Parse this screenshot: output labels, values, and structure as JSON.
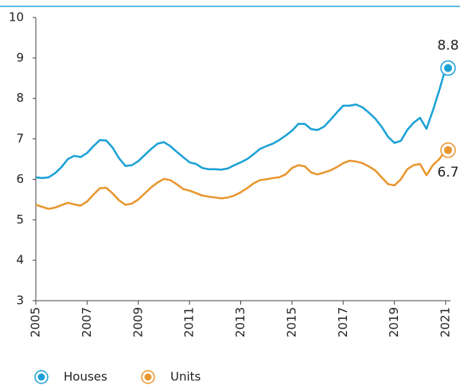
{
  "chart_data": {
    "type": "line",
    "x": [
      2005,
      2005.25,
      2005.5,
      2005.75,
      2006,
      2006.25,
      2006.5,
      2006.75,
      2007,
      2007.25,
      2007.5,
      2007.75,
      2008,
      2008.25,
      2008.5,
      2008.75,
      2009,
      2009.25,
      2009.5,
      2009.75,
      2010,
      2010.25,
      2010.5,
      2010.75,
      2011,
      2011.25,
      2011.5,
      2011.75,
      2012,
      2012.25,
      2012.5,
      2012.75,
      2013,
      2013.25,
      2013.5,
      2013.75,
      2014,
      2014.25,
      2014.5,
      2014.75,
      2015,
      2015.25,
      2015.5,
      2015.75,
      2016,
      2016.25,
      2016.5,
      2016.75,
      2017,
      2017.25,
      2017.5,
      2017.75,
      2018,
      2018.25,
      2018.5,
      2018.75,
      2019,
      2019.25,
      2019.5,
      2019.75,
      2020,
      2020.25,
      2020.5,
      2020.75,
      2021
    ],
    "series": [
      {
        "name": "Houses",
        "color": "#1ba1d6",
        "end_label": "8.8",
        "values": [
          6.05,
          6.03,
          6.05,
          6.15,
          6.3,
          6.5,
          6.58,
          6.55,
          6.65,
          6.82,
          6.97,
          6.96,
          6.78,
          6.52,
          6.33,
          6.35,
          6.45,
          6.6,
          6.75,
          6.88,
          6.92,
          6.82,
          6.68,
          6.55,
          6.42,
          6.38,
          6.28,
          6.25,
          6.25,
          6.24,
          6.27,
          6.35,
          6.42,
          6.5,
          6.62,
          6.75,
          6.82,
          6.88,
          6.97,
          7.08,
          7.2,
          7.37,
          7.37,
          7.24,
          7.22,
          7.3,
          7.47,
          7.65,
          7.82,
          7.82,
          7.85,
          7.78,
          7.65,
          7.5,
          7.3,
          7.05,
          6.9,
          6.95,
          7.22,
          7.4,
          7.52,
          7.25,
          7.7,
          8.2,
          8.75
        ]
      },
      {
        "name": "Units",
        "color": "#e8962e",
        "end_label": "6.7",
        "values": [
          5.37,
          5.32,
          5.27,
          5.3,
          5.36,
          5.42,
          5.38,
          5.35,
          5.45,
          5.62,
          5.78,
          5.79,
          5.65,
          5.48,
          5.37,
          5.4,
          5.5,
          5.65,
          5.8,
          5.92,
          6.01,
          5.98,
          5.88,
          5.76,
          5.72,
          5.66,
          5.6,
          5.57,
          5.55,
          5.53,
          5.55,
          5.6,
          5.68,
          5.78,
          5.9,
          5.98,
          6.0,
          6.03,
          6.05,
          6.12,
          6.28,
          6.35,
          6.32,
          6.17,
          6.12,
          6.17,
          6.22,
          6.3,
          6.4,
          6.46,
          6.44,
          6.4,
          6.32,
          6.22,
          6.05,
          5.88,
          5.85,
          6.0,
          6.25,
          6.35,
          6.38,
          6.1,
          6.35,
          6.5,
          6.72
        ]
      }
    ],
    "xlim": [
      2005,
      2021
    ],
    "xticks": [
      2005,
      2007,
      2009,
      2011,
      2013,
      2015,
      2017,
      2019,
      2021
    ],
    "ylim": [
      3,
      10
    ],
    "yticks": [
      3,
      4,
      5,
      6,
      7,
      8,
      9,
      10
    ]
  }
}
